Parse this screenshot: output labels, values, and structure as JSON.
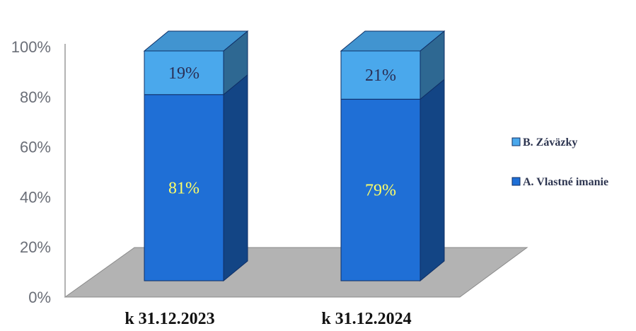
{
  "chart_data": {
    "type": "bar",
    "stacked": true,
    "three_d": true,
    "categories": [
      "k 31.12.2023",
      "k 31.12.2024"
    ],
    "series": [
      {
        "name": "A. Vlastné imanie",
        "values": [
          81,
          79
        ],
        "labels": [
          "81%",
          "79%"
        ],
        "color": "#1f6fd6"
      },
      {
        "name": "B. Záväzky",
        "values": [
          19,
          21
        ],
        "labels": [
          "19%",
          "21%"
        ],
        "color": "#4aa8ec"
      }
    ],
    "y_ticks": [
      "0%",
      "20%",
      "40%",
      "60%",
      "80%",
      "100%"
    ],
    "ylim": [
      0,
      100
    ],
    "legend_position": "right",
    "grid": false,
    "colors": {
      "floor": "#b3b3b3",
      "bottom_label": "#ffff66",
      "top_label": "#2a2f55"
    }
  }
}
